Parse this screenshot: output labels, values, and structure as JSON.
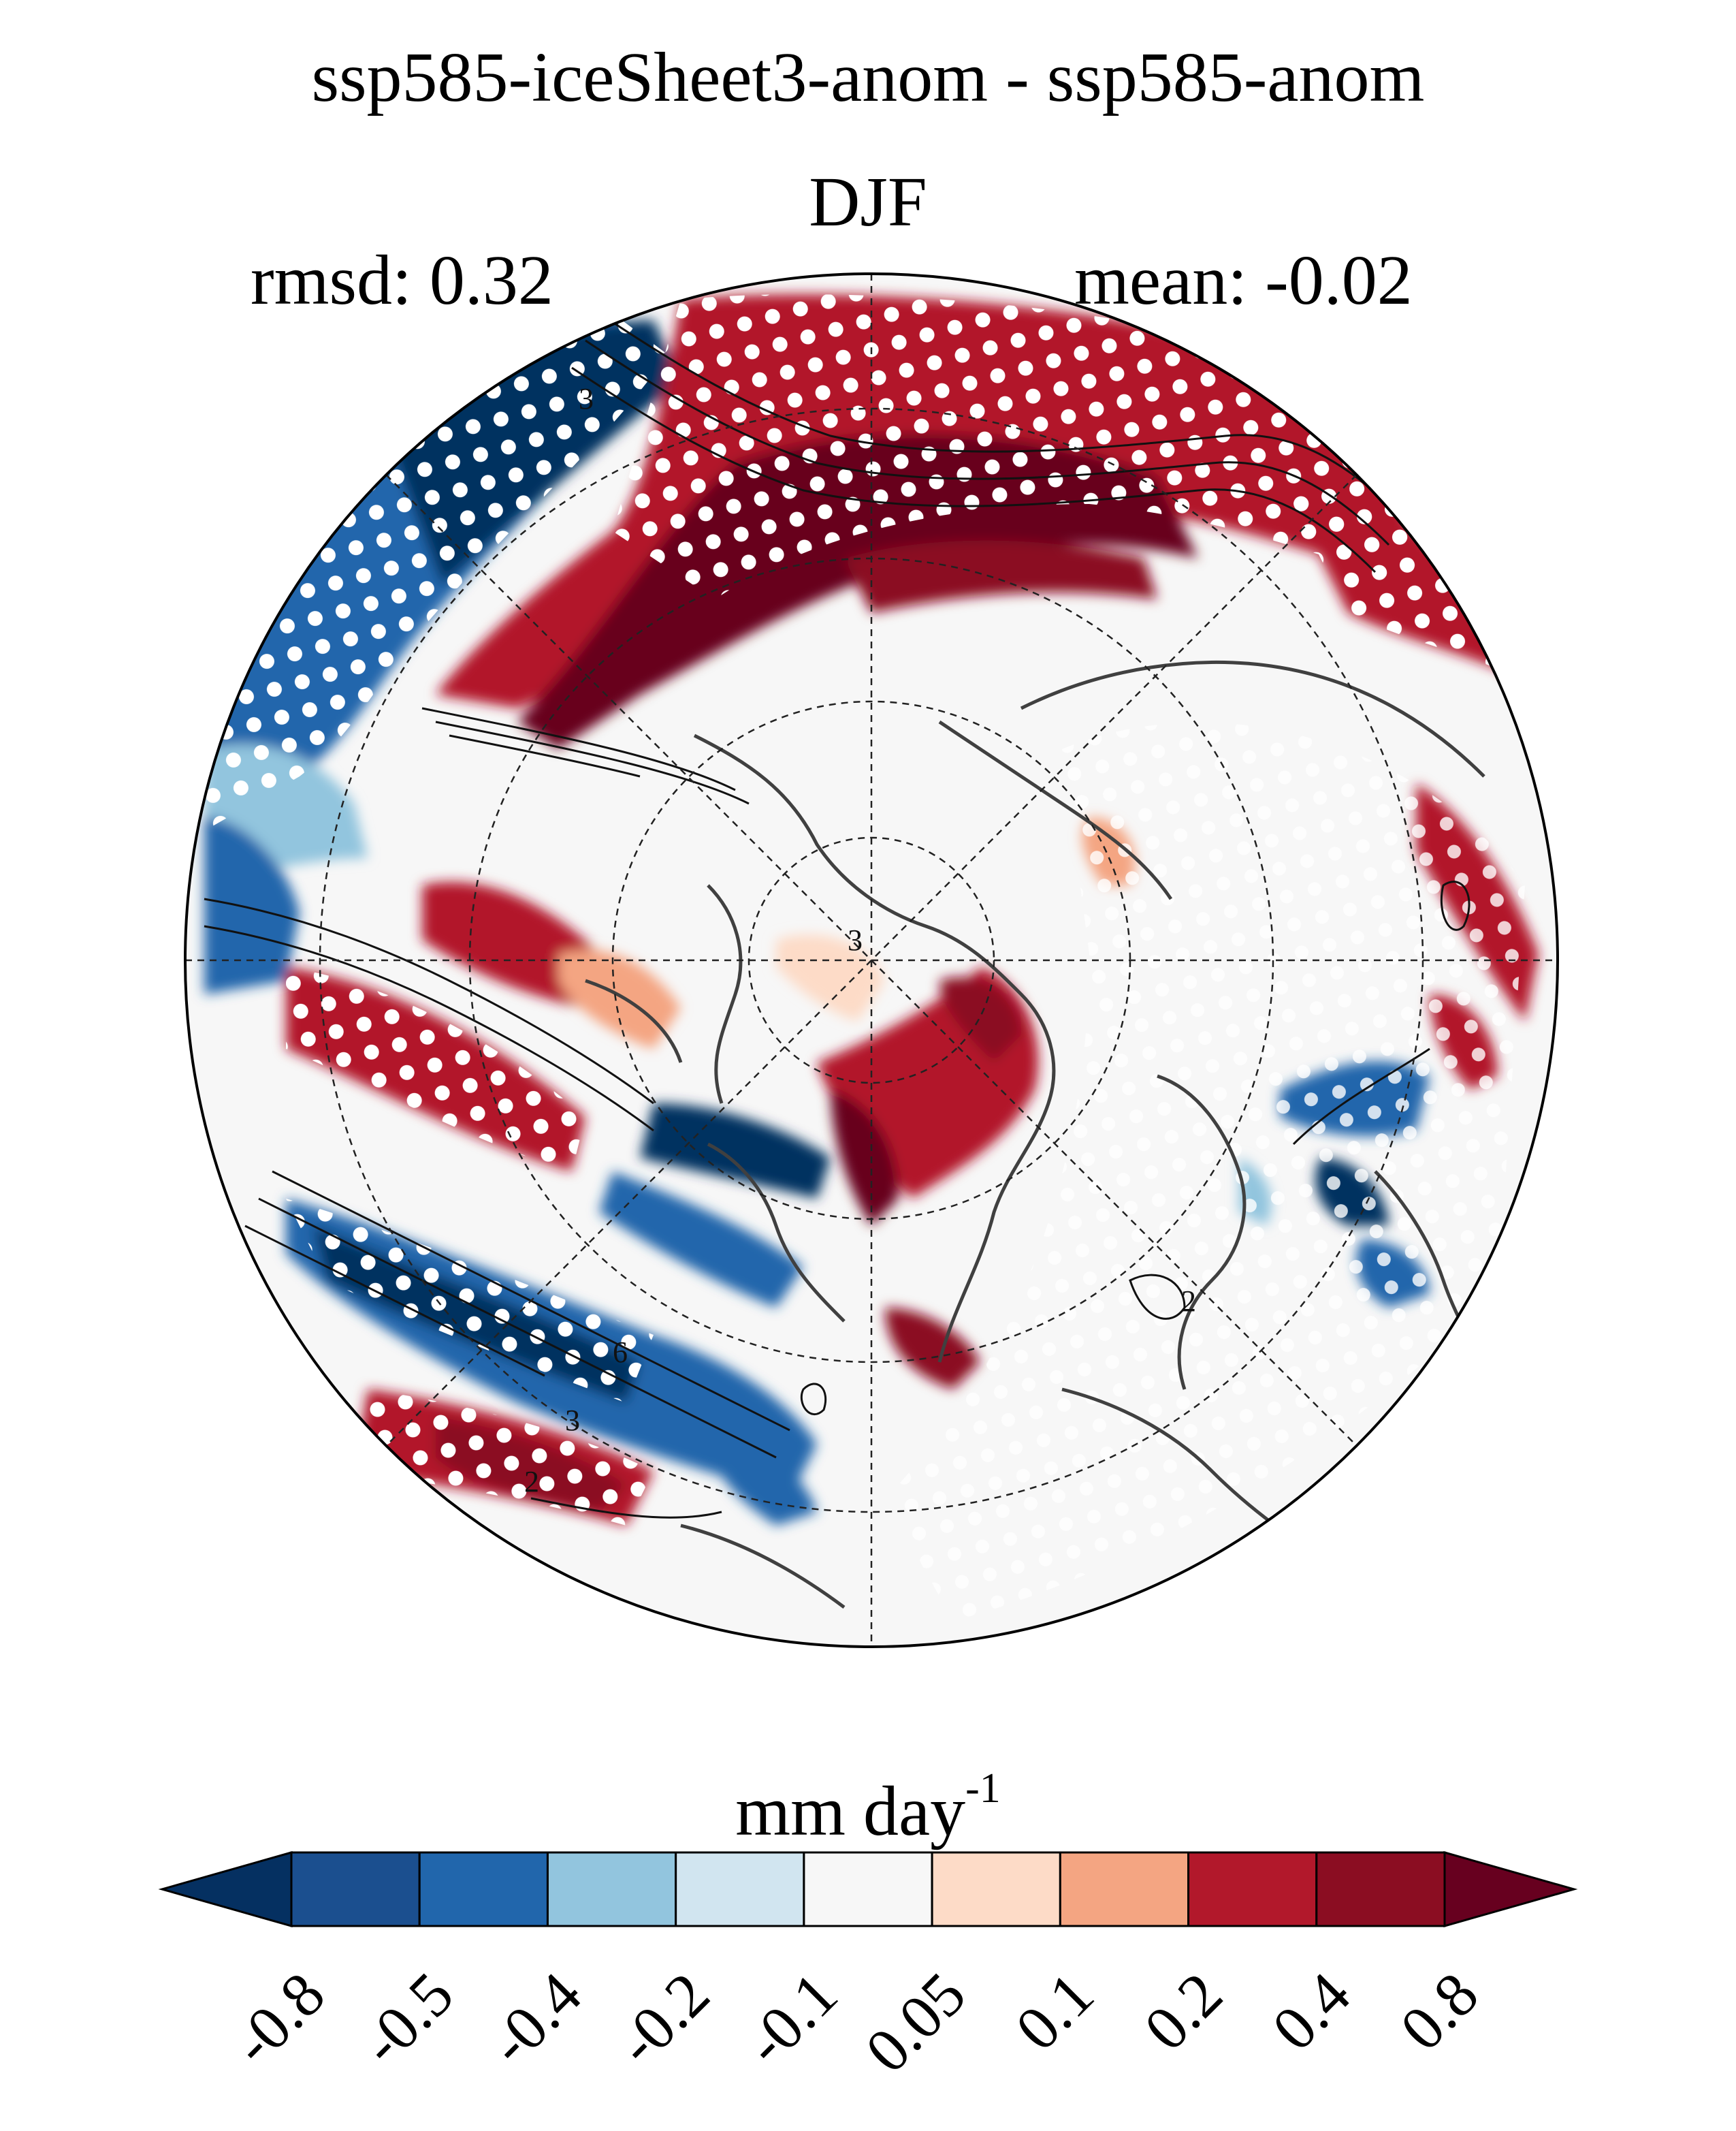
{
  "header": {
    "title": "ssp585-iceSheet3-anom - ssp585-anom",
    "season": "DJF",
    "rmsd": "rmsd: 0.32",
    "mean": "mean: -0.02"
  },
  "map": {
    "projection": "north polar stereographic",
    "contour_labels": [
      "3",
      "3",
      "3",
      "2",
      "6",
      "2"
    ],
    "stippling": "white dots mark significant regions"
  },
  "colorbar": {
    "title": "mm day",
    "title_exponent": "-1",
    "levels": [
      "-0.8",
      "-0.5",
      "-0.4",
      "-0.2",
      "-0.1",
      "0.05",
      "0.1",
      "0.2",
      "0.4",
      "0.8"
    ],
    "colors": [
      "#053061",
      "#1b4f8f",
      "#2166ac",
      "#92c5de",
      "#d1e5f0",
      "#f7f7f7",
      "#fddbc7",
      "#f4a582",
      "#b2182b",
      "#8b0d22",
      "#67001f"
    ]
  },
  "colors": {
    "deep_blue": "#053061",
    "mid_blue": "#2166ac",
    "light_blue": "#92c5de",
    "pale_blue": "#d1e5f0",
    "neutral": "#f7f7f7",
    "pale_red": "#fddbc7",
    "light_red": "#f4a582",
    "mid_red": "#b2182b",
    "deep_red": "#67001f"
  }
}
